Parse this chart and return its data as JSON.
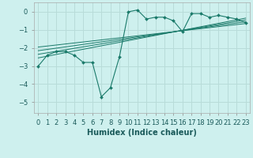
{
  "title": "",
  "xlabel": "Humidex (Indice chaleur)",
  "ylabel": "",
  "bg_color": "#cef0ee",
  "grid_color": "#b8dcd9",
  "line_color": "#1a7a6a",
  "xlim": [
    -0.5,
    23.5
  ],
  "ylim": [
    -5.6,
    0.5
  ],
  "xticks": [
    0,
    1,
    2,
    3,
    4,
    5,
    6,
    7,
    8,
    9,
    10,
    11,
    12,
    13,
    14,
    15,
    16,
    17,
    18,
    19,
    20,
    21,
    22,
    23
  ],
  "yticks": [
    0,
    -1,
    -2,
    -3,
    -4,
    -5
  ],
  "main_x": [
    0,
    1,
    2,
    3,
    4,
    5,
    6,
    7,
    8,
    9,
    10,
    11,
    12,
    13,
    14,
    15,
    16,
    17,
    18,
    19,
    20,
    21,
    22,
    23
  ],
  "main_y": [
    -3.0,
    -2.4,
    -2.2,
    -2.2,
    -2.4,
    -2.8,
    -2.8,
    -4.7,
    -4.2,
    -2.5,
    0.0,
    0.1,
    -0.4,
    -0.3,
    -0.3,
    -0.5,
    -1.1,
    -0.1,
    -0.1,
    -0.3,
    -0.2,
    -0.3,
    -0.4,
    -0.6
  ],
  "reg_lines": [
    {
      "x": [
        0,
        23
      ],
      "y": [
        -2.55,
        -0.35
      ]
    },
    {
      "x": [
        0,
        23
      ],
      "y": [
        -2.35,
        -0.45
      ]
    },
    {
      "x": [
        0,
        23
      ],
      "y": [
        -2.15,
        -0.55
      ]
    },
    {
      "x": [
        0,
        23
      ],
      "y": [
        -1.95,
        -0.65
      ]
    }
  ],
  "xlabel_fontsize": 7,
  "tick_fontsize": 6
}
